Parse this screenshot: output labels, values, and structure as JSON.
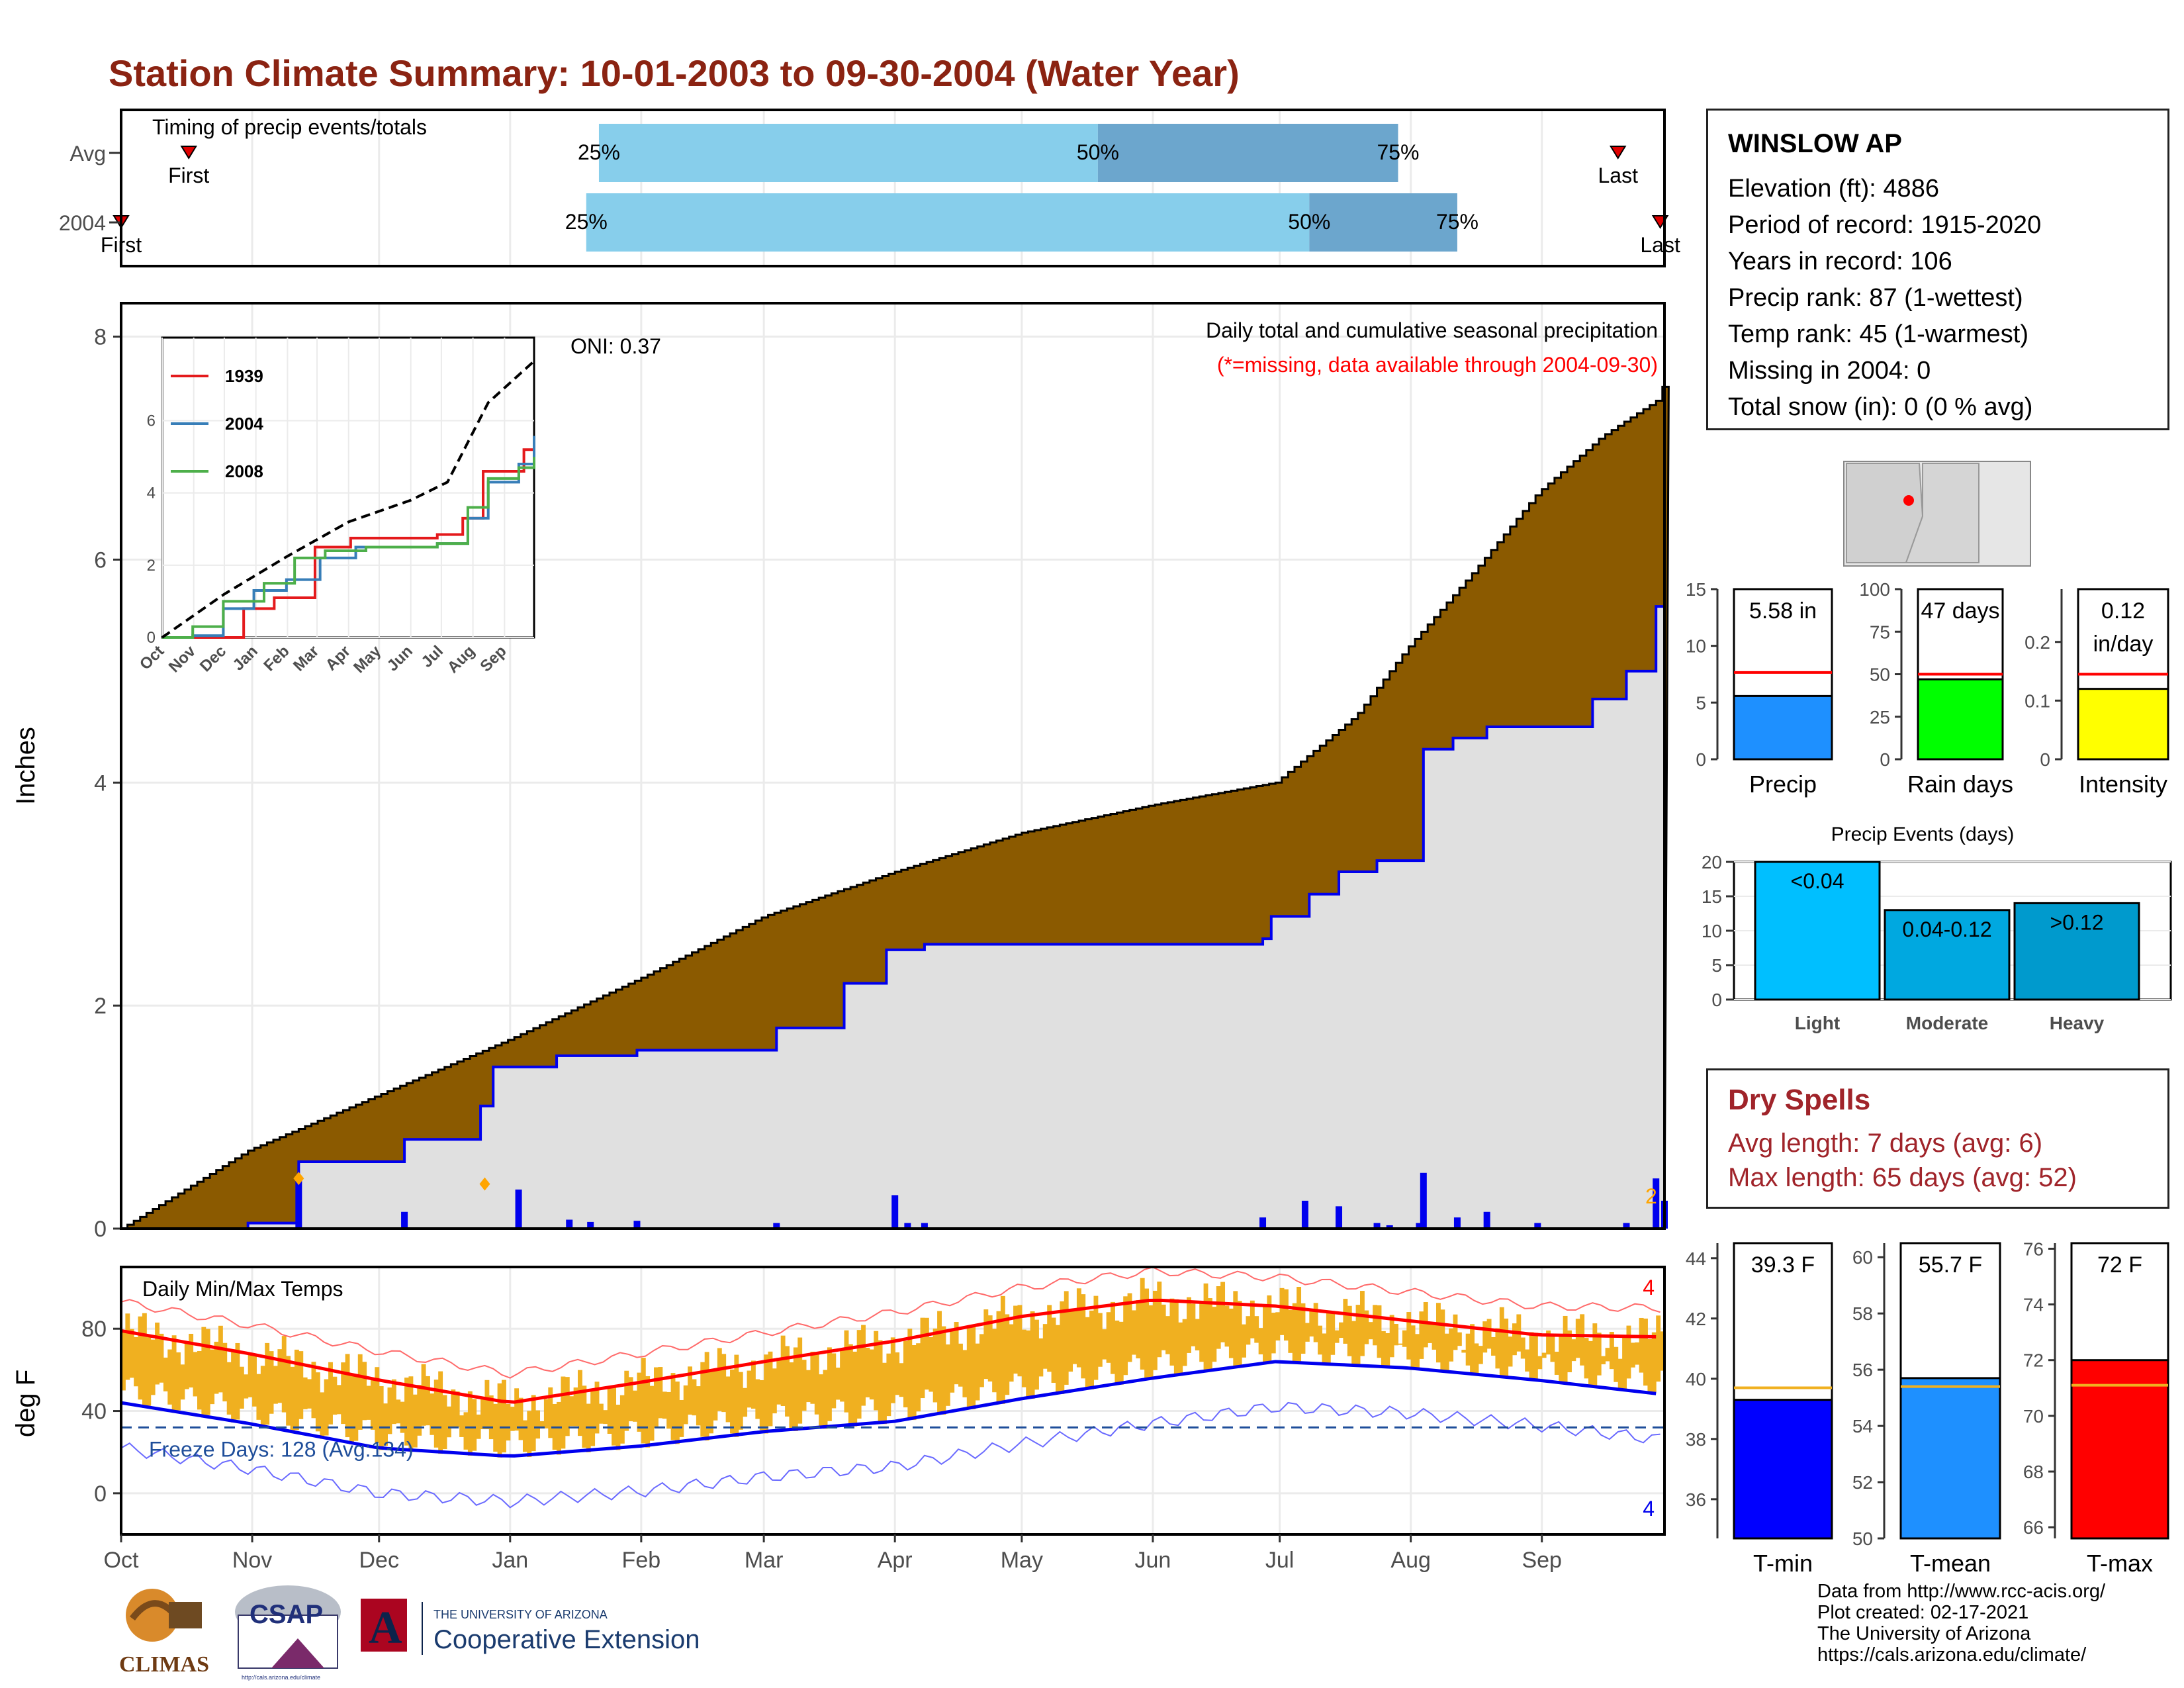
{
  "title": "Station Climate Summary: 10-01-2003 to 09-30-2004 (Water Year)",
  "station": {
    "name": "WINSLOW AP",
    "lines": [
      "Elevation (ft): 4886",
      "Period of record: 1915-2020",
      "Years in record: 106",
      "Precip rank: 87 (1-wettest)",
      "Temp rank: 45 (1-warmest)",
      "Missing in 2004: 0",
      "Total snow (in): 0 (0 % avg)"
    ]
  },
  "dry_spells": {
    "heading": "Dry Spells",
    "avg": "Avg length: 7 days (avg: 6)",
    "max": "Max length: 65 days (avg: 52)"
  },
  "credits": [
    "Data from http://www.rcc-acis.org/",
    "Plot created: 02-17-2021",
    "The University of Arizona",
    "https://cals.arizona.edu/climate/"
  ],
  "logos": {
    "climas": "CLIMAS",
    "csap": "CSAP",
    "csap_url": "http://cals.arizona.edu/climate",
    "ua_small": "THE UNIVERSITY OF ARIZONA",
    "ua_big": "Cooperative Extension"
  },
  "colors": {
    "cum_avg_fill": "#8B5A00",
    "cum_year_fill": "#E0E0E0",
    "cum_year_line": "#0000EE",
    "timing_light": "#87CEEB",
    "timing_dark": "#6CA6CD",
    "temp_bar": "#F0B020",
    "normal_max": "#FF0000",
    "normal_min": "#0000EE",
    "precip_bar": "#1E90FF",
    "raindays_bar": "#00FF00",
    "intensity_bar": "#FFFF00",
    "tmin_bar": "#0000FF",
    "tmean_bar": "#1E90FF",
    "tmax_bar": "#FF0000",
    "light_bar": "#00BFFF",
    "moderate_bar": "#00A8E0",
    "heavy_bar": "#009ACD"
  },
  "months": [
    "Oct",
    "Nov",
    "Dec",
    "Jan",
    "Feb",
    "Mar",
    "Apr",
    "May",
    "Jun",
    "Jul",
    "Aug",
    "Sep"
  ],
  "chart_data": [
    {
      "type": "bar",
      "name": "timing",
      "title": "Timing of precip events/totals",
      "categories": [
        "Avg",
        "2004"
      ],
      "rows": [
        {
          "label": "Avg",
          "first_day": 16,
          "p25_day": 113,
          "p50_day": 231,
          "p75_day": 302,
          "last_day": 354,
          "first_label": "First",
          "last_label": "Last"
        },
        {
          "label": "2004",
          "first_day": 0,
          "p25_day": 110,
          "p50_day": 281,
          "p75_day": 316,
          "last_day": 364,
          "first_label": "First",
          "last_label": "Last"
        }
      ],
      "percent_labels": [
        "25%",
        "50%",
        "75%"
      ]
    },
    {
      "type": "area",
      "name": "cumulative precipitation",
      "title": "Daily total and cumulative seasonal precipitation",
      "subtitle": "(*=missing, data available through 2004-09-30)",
      "annotation": "ONI: 0.37",
      "ylabel": "Inches",
      "ylim": [
        0,
        8.3
      ],
      "yticks": [
        0,
        2,
        4,
        6,
        8
      ],
      "avg_cumulative": {
        "day": [
          0,
          30,
          61,
          92,
          123,
          152,
          183,
          213,
          244,
          273,
          292,
          304,
          320,
          335,
          350,
          364,
          365
        ],
        "value": [
          0,
          0.7,
          1.2,
          1.7,
          2.25,
          2.8,
          3.2,
          3.55,
          3.8,
          4.0,
          4.6,
          5.2,
          5.9,
          6.6,
          7.1,
          7.45,
          7.65
        ]
      },
      "year_cumulative": {
        "day": [
          0,
          30,
          42,
          67,
          85,
          88,
          103,
          122,
          155,
          171,
          181,
          190,
          270,
          272,
          281,
          288,
          297,
          307,
          308,
          315,
          323,
          348,
          356,
          363,
          365
        ],
        "value": [
          0,
          0.05,
          0.6,
          0.8,
          1.1,
          1.45,
          1.55,
          1.6,
          1.8,
          2.2,
          2.5,
          2.55,
          2.6,
          2.8,
          3.0,
          3.2,
          3.3,
          3.3,
          4.3,
          4.4,
          4.5,
          4.75,
          5.0,
          5.58,
          5.58
        ]
      },
      "daily_precip": {
        "day": [
          42,
          67,
          94,
          106,
          111,
          122,
          155,
          183,
          186,
          190,
          270,
          280,
          288,
          297,
          300,
          307,
          308,
          316,
          323,
          335,
          356,
          363,
          365
        ],
        "value": [
          0.45,
          0.15,
          0.35,
          0.08,
          0.06,
          0.07,
          0.05,
          0.3,
          0.05,
          0.05,
          0.1,
          0.25,
          0.2,
          0.05,
          0.03,
          0.05,
          0.5,
          0.1,
          0.15,
          0.05,
          0.05,
          0.45,
          0.25
        ]
      },
      "markers": [
        {
          "day": 42,
          "label": "0.5"
        },
        {
          "day": 86,
          "label": "0.4"
        }
      ],
      "corner_note": "2"
    },
    {
      "type": "line",
      "name": "inset cumulative",
      "categories": [
        "Oct",
        "Nov",
        "Dec",
        "Jan",
        "Feb",
        "Mar",
        "Apr",
        "May",
        "Jun",
        "Jul",
        "Aug",
        "Sep"
      ],
      "ylim": [
        0,
        8.3
      ],
      "yticks": [
        0,
        2,
        4,
        6
      ],
      "series": [
        {
          "name": "1939",
          "day": [
            0,
            60,
            80,
            110,
            150,
            185,
            270,
            295,
            315,
            355,
            365
          ],
          "value": [
            0,
            0.0,
            0.8,
            1.1,
            2.5,
            2.75,
            2.85,
            3.3,
            4.6,
            5.2,
            5.4
          ]
        },
        {
          "name": "2004",
          "day": [
            0,
            30,
            60,
            90,
            122,
            155,
            190,
            270,
            300,
            320,
            350,
            365
          ],
          "value": [
            0,
            0.05,
            0.8,
            1.3,
            1.6,
            2.2,
            2.5,
            2.6,
            3.3,
            4.3,
            4.8,
            5.58
          ]
        },
        {
          "name": "2008",
          "day": [
            0,
            30,
            60,
            100,
            130,
            160,
            200,
            270,
            300,
            320,
            350,
            365
          ],
          "value": [
            0,
            0.3,
            1.0,
            1.5,
            2.2,
            2.4,
            2.5,
            2.6,
            3.6,
            4.4,
            4.7,
            5.0
          ]
        },
        {
          "name": "average",
          "day": [
            0,
            61,
            123,
            183,
            244,
            280,
            320,
            365
          ],
          "value": [
            0,
            1.2,
            2.25,
            3.2,
            3.8,
            4.3,
            6.5,
            7.65
          ]
        }
      ]
    },
    {
      "type": "bar",
      "name": "daily temperatures",
      "title": "Daily Min/Max Temps",
      "ylabel": "deg F",
      "ylim": [
        -20,
        110
      ],
      "yticks": [
        0,
        40,
        80
      ],
      "freeze_label": "Freeze Days: 128 (Avg:134)",
      "freeze_line": 32,
      "normal_max": {
        "day": [
          0,
          30,
          61,
          92,
          123,
          152,
          183,
          213,
          244,
          273,
          304,
          335,
          365
        ],
        "value": [
          79,
          68,
          55,
          44,
          54,
          64,
          74,
          86,
          94,
          91,
          84,
          77,
          76
        ]
      },
      "normal_min": {
        "day": [
          0,
          30,
          61,
          92,
          123,
          152,
          183,
          213,
          244,
          273,
          304,
          335,
          365
        ],
        "value": [
          44,
          34,
          22,
          18,
          23,
          30,
          35,
          46,
          56,
          64,
          61,
          55,
          48
        ]
      },
      "record_max_note": "4",
      "record_min_note": "4"
    },
    {
      "type": "bar",
      "name": "precip total",
      "categories": [
        "Precip"
      ],
      "values": [
        5.58
      ],
      "average": 7.65,
      "label": "5.58 in",
      "ylim": [
        0,
        15
      ],
      "yticks": [
        0,
        5,
        10,
        15
      ]
    },
    {
      "type": "bar",
      "name": "rain days",
      "categories": [
        "Rain days"
      ],
      "values": [
        47
      ],
      "average": 50,
      "label": "47 days",
      "ylim": [
        0,
        100
      ],
      "yticks": [
        0,
        25,
        50,
        75,
        100
      ]
    },
    {
      "type": "bar",
      "name": "intensity",
      "categories": [
        "Intensity"
      ],
      "values": [
        0.12
      ],
      "average": 0.145,
      "label": "0.12",
      "label2": "in/day",
      "ylim": [
        0,
        0.29
      ],
      "yticks": [
        0.0,
        0.1,
        0.2
      ]
    },
    {
      "type": "bar",
      "name": "precip events",
      "title": "Precip Events (days)",
      "categories": [
        "Light",
        "Moderate",
        "Heavy"
      ],
      "values": [
        20,
        13,
        14
      ],
      "bar_labels": [
        "<0.04",
        "0.04-0.12",
        ">0.12"
      ],
      "ylim": [
        0,
        20
      ],
      "yticks": [
        0,
        5,
        10,
        15,
        20
      ]
    },
    {
      "type": "bar",
      "name": "t-min",
      "categories": [
        "T-min"
      ],
      "values": [
        39.3
      ],
      "average": 39.7,
      "label": "39.3 F",
      "ylim": [
        34.7,
        44.5
      ],
      "yticks": [
        36,
        38,
        40,
        42,
        44
      ]
    },
    {
      "type": "bar",
      "name": "t-mean",
      "categories": [
        "T-mean"
      ],
      "values": [
        55.7
      ],
      "average": 55.4,
      "label": "55.7 F",
      "ylim": [
        50,
        60.5
      ],
      "yticks": [
        50,
        52,
        54,
        56,
        58,
        60
      ]
    },
    {
      "type": "bar",
      "name": "t-max",
      "categories": [
        "T-max"
      ],
      "values": [
        72
      ],
      "average": 71.1,
      "label": "72 F",
      "ylim": [
        65.6,
        76.2
      ],
      "yticks": [
        66,
        68,
        70,
        72,
        74,
        76
      ]
    }
  ]
}
